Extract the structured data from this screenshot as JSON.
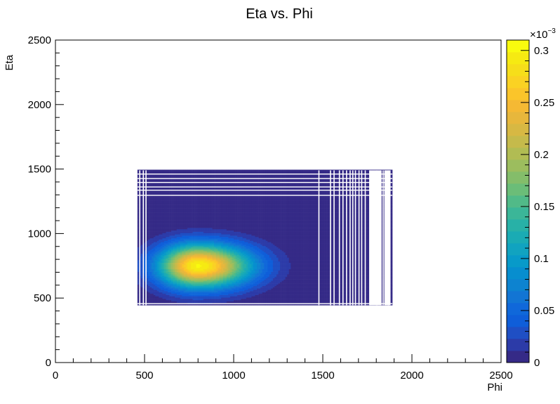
{
  "chart_data": {
    "type": "heatmap",
    "title": "Eta vs. Phi",
    "xlabel": "Phi",
    "ylabel": "Eta",
    "xlim": [
      0,
      2500
    ],
    "ylim": [
      0,
      2500
    ],
    "x_ticks": [
      {
        "value": 0,
        "label": "0"
      },
      {
        "value": 500,
        "label": "500"
      },
      {
        "value": 1000,
        "label": "1000"
      },
      {
        "value": 1500,
        "label": "1500"
      },
      {
        "value": 2000,
        "label": "2000"
      },
      {
        "value": 2500,
        "label": "2500"
      }
    ],
    "y_ticks": [
      {
        "value": 0,
        "label": "0"
      },
      {
        "value": 500,
        "label": "500"
      },
      {
        "value": 1000,
        "label": "1000"
      },
      {
        "value": 1500,
        "label": "1500"
      },
      {
        "value": 2000,
        "label": "2000"
      },
      {
        "value": 2500,
        "label": "2500"
      }
    ],
    "colorbar": {
      "range": [
        0,
        0.31
      ],
      "exponent_label": "×10",
      "exponent_power": "−3",
      "ticks": [
        {
          "value": 0,
          "label": "0"
        },
        {
          "value": 0.05,
          "label": "0.05"
        },
        {
          "value": 0.1,
          "label": "0.1"
        },
        {
          "value": 0.15,
          "label": "0.15"
        },
        {
          "value": 0.2,
          "label": "0.2"
        },
        {
          "value": 0.25,
          "label": "0.25"
        },
        {
          "value": 0.3,
          "label": "0.3"
        }
      ],
      "palette": [
        "#352a87",
        "#2c3ba8",
        "#1f4fc4",
        "#0f5ed9",
        "#1068da",
        "#1275d4",
        "#0d83d0",
        "#078ecf",
        "#089ac9",
        "#11a3c0",
        "#1aabb4",
        "#28b1a7",
        "#3bb698",
        "#51ba88",
        "#6bbd78",
        "#84bd6a",
        "#9cbd5e",
        "#b1bc53",
        "#c5ba4b",
        "#d7b843",
        "#e7b73c",
        "#f5b934",
        "#fbc52a",
        "#fad223",
        "#f6de1a",
        "#f6ea12",
        "#f9fb0e"
      ]
    },
    "distribution": {
      "background_value": 0.0,
      "phi_range": [
        460,
        1890
      ],
      "eta_range": [
        445,
        1490
      ],
      "peak": {
        "phi": 800,
        "eta": 750,
        "value": 0.3
      },
      "sigma_phi": 150,
      "sigma_eta": 115
    }
  }
}
